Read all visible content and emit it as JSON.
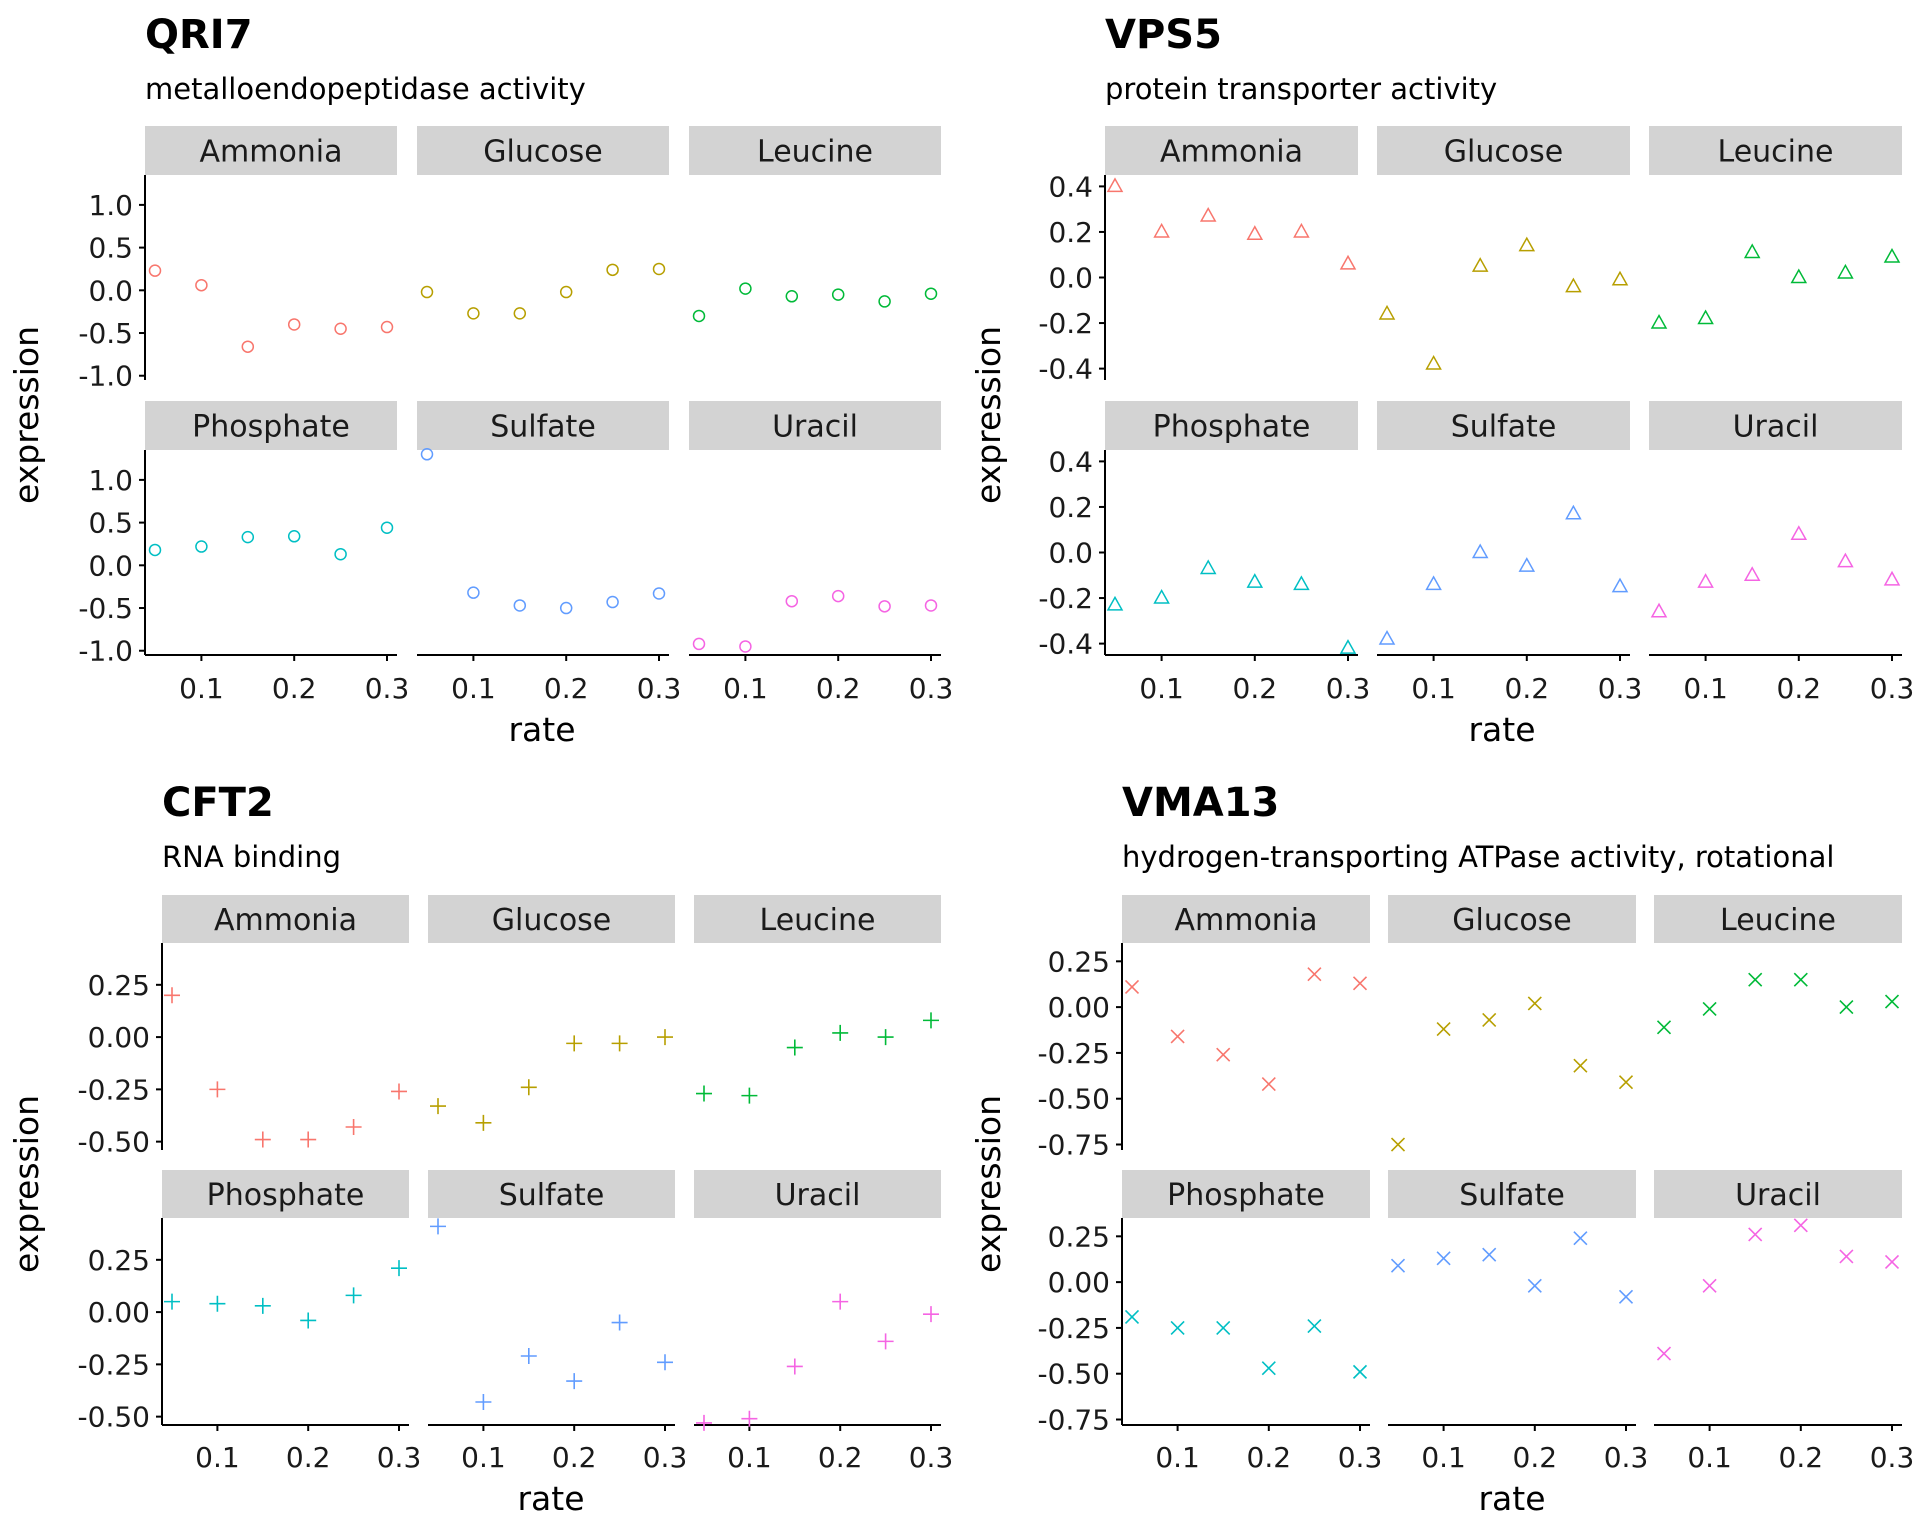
{
  "chart_data": [
    {
      "type": "scatter",
      "title": "QRI7",
      "subtitle": "metalloendopeptidase activity",
      "xlabel": "rate",
      "ylabel": "expression",
      "marker": "circle",
      "x": [
        0.05,
        0.1,
        0.15,
        0.2,
        0.25,
        0.3
      ],
      "xlim": [
        0.05,
        0.3
      ],
      "x_ticks": [
        "0.1",
        "0.2",
        "0.3"
      ],
      "ylim": [
        -1.05,
        1.35
      ],
      "y_ticks": [
        "1.0",
        "0.5",
        "0.0",
        "-0.5",
        "-1.0"
      ],
      "facets": [
        {
          "name": "Ammonia",
          "values": [
            0.23,
            0.06,
            -0.66,
            -0.4,
            -0.45,
            -0.43
          ]
        },
        {
          "name": "Glucose",
          "values": [
            -0.02,
            -0.27,
            -0.27,
            -0.02,
            0.24,
            0.25
          ]
        },
        {
          "name": "Leucine",
          "values": [
            -0.3,
            0.02,
            -0.07,
            -0.05,
            -0.13,
            -0.04
          ]
        },
        {
          "name": "Phosphate",
          "values": [
            0.18,
            0.22,
            0.33,
            0.34,
            0.13,
            0.44
          ]
        },
        {
          "name": "Sulfate",
          "values": [
            1.3,
            -0.32,
            -0.47,
            -0.5,
            -0.43,
            -0.33
          ]
        },
        {
          "name": "Uracil",
          "values": [
            -0.92,
            -0.95,
            -0.42,
            -0.36,
            -0.48,
            -0.47
          ]
        }
      ]
    },
    {
      "type": "scatter",
      "title": "VPS5",
      "subtitle": "protein transporter activity",
      "xlabel": "rate",
      "ylabel": "expression",
      "marker": "triangle",
      "x": [
        0.05,
        0.1,
        0.15,
        0.2,
        0.25,
        0.3
      ],
      "xlim": [
        0.05,
        0.3
      ],
      "x_ticks": [
        "0.1",
        "0.2",
        "0.3"
      ],
      "ylim": [
        -0.45,
        0.45
      ],
      "y_ticks": [
        "0.4",
        "0.2",
        "0.0",
        "-0.2",
        "-0.4"
      ],
      "facets": [
        {
          "name": "Ammonia",
          "values": [
            0.4,
            0.2,
            0.27,
            0.19,
            0.2,
            0.06
          ]
        },
        {
          "name": "Glucose",
          "values": [
            -0.16,
            -0.38,
            0.05,
            0.14,
            -0.04,
            -0.01
          ]
        },
        {
          "name": "Leucine",
          "values": [
            -0.2,
            -0.18,
            0.11,
            0.0,
            0.02,
            0.09
          ]
        },
        {
          "name": "Phosphate",
          "values": [
            -0.23,
            -0.2,
            -0.07,
            -0.13,
            -0.14,
            -0.42
          ]
        },
        {
          "name": "Sulfate",
          "values": [
            -0.38,
            -0.14,
            0.0,
            -0.06,
            0.17,
            -0.15
          ]
        },
        {
          "name": "Uracil",
          "values": [
            -0.26,
            -0.13,
            -0.1,
            0.08,
            -0.04,
            -0.12
          ]
        }
      ]
    },
    {
      "type": "scatter",
      "title": "CFT2",
      "subtitle": "RNA binding",
      "xlabel": "rate",
      "ylabel": "expression",
      "marker": "plus",
      "x": [
        0.05,
        0.1,
        0.15,
        0.2,
        0.25,
        0.3
      ],
      "xlim": [
        0.05,
        0.3
      ],
      "x_ticks": [
        "0.1",
        "0.2",
        "0.3"
      ],
      "ylim": [
        -0.54,
        0.45
      ],
      "y_ticks": [
        "0.25",
        "0.00",
        "-0.25",
        "-0.50"
      ],
      "facets": [
        {
          "name": "Ammonia",
          "values": [
            0.2,
            -0.25,
            -0.49,
            -0.49,
            -0.43,
            -0.26
          ]
        },
        {
          "name": "Glucose",
          "values": [
            -0.33,
            -0.41,
            -0.24,
            -0.03,
            -0.03,
            0.0
          ]
        },
        {
          "name": "Leucine",
          "values": [
            -0.27,
            -0.28,
            -0.05,
            0.02,
            0.0,
            0.08
          ]
        },
        {
          "name": "Phosphate",
          "values": [
            0.05,
            0.04,
            0.03,
            -0.04,
            0.08,
            0.21
          ]
        },
        {
          "name": "Sulfate",
          "values": [
            0.41,
            -0.43,
            -0.21,
            -0.33,
            -0.05,
            -0.24
          ]
        },
        {
          "name": "Uracil",
          "values": [
            -0.53,
            -0.51,
            -0.26,
            0.05,
            -0.14,
            -0.01
          ]
        }
      ]
    },
    {
      "type": "scatter",
      "title": "VMA13",
      "subtitle": "hydrogen-transporting ATPase activity, rotational",
      "xlabel": "rate",
      "ylabel": "expression",
      "marker": "cross",
      "x": [
        0.05,
        0.1,
        0.15,
        0.2,
        0.25,
        0.3
      ],
      "xlim": [
        0.05,
        0.3
      ],
      "x_ticks": [
        "0.1",
        "0.2",
        "0.3"
      ],
      "ylim": [
        -0.78,
        0.35
      ],
      "y_ticks": [
        "0.25",
        "0.00",
        "-0.25",
        "-0.50",
        "-0.75"
      ],
      "facets": [
        {
          "name": "Ammonia",
          "values": [
            0.11,
            -0.16,
            -0.26,
            -0.42,
            0.18,
            0.13
          ]
        },
        {
          "name": "Glucose",
          "values": [
            -0.75,
            -0.12,
            -0.07,
            0.02,
            -0.32,
            -0.41
          ]
        },
        {
          "name": "Leucine",
          "values": [
            -0.11,
            -0.01,
            0.15,
            0.15,
            0.0,
            0.03
          ]
        },
        {
          "name": "Phosphate",
          "values": [
            -0.19,
            -0.25,
            -0.25,
            -0.47,
            -0.24,
            -0.49
          ]
        },
        {
          "name": "Sulfate",
          "values": [
            0.09,
            0.13,
            0.15,
            -0.02,
            0.24,
            -0.08
          ]
        },
        {
          "name": "Uracil",
          "values": [
            -0.39,
            -0.02,
            0.26,
            0.31,
            0.14,
            0.11
          ]
        }
      ]
    }
  ],
  "facet_colors": {
    "Ammonia": "#F8766D",
    "Glucose": "#B79F00",
    "Leucine": "#00BA38",
    "Phosphate": "#00BFC4",
    "Sulfate": "#619CFF",
    "Uracil": "#F564E3"
  },
  "strip_color": "#D3D3D3",
  "axis_color": "#000000"
}
